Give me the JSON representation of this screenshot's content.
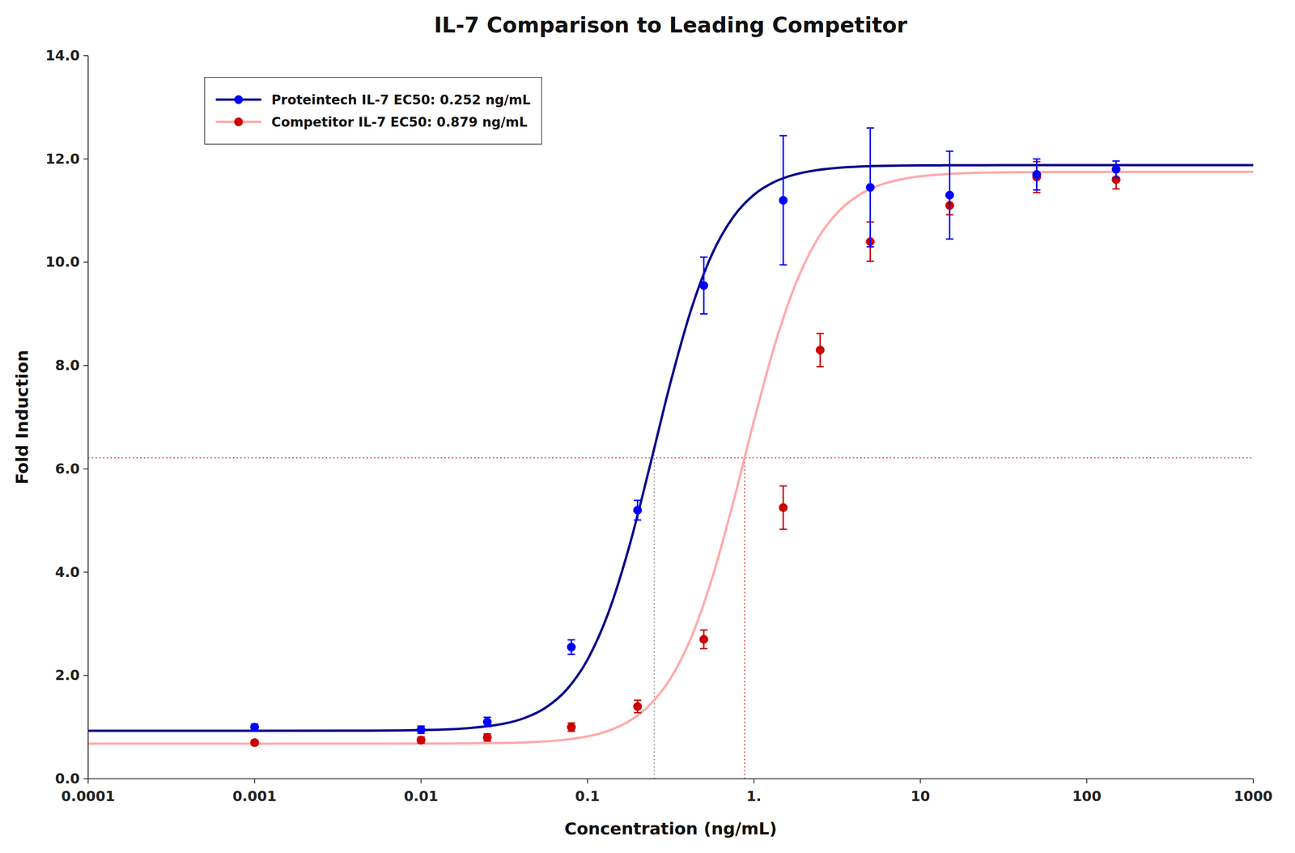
{
  "chart_data": {
    "type": "line",
    "title": "IL-7 Comparison to Leading Competitor",
    "x_label": "Concentration (ng/mL)",
    "y_label": "Fold Induction",
    "log": "x",
    "grid": false,
    "legend": "upper left",
    "xlim": [
      0.0001,
      1000
    ],
    "xticks": [
      0.0001,
      0.001,
      0.01,
      0.1,
      {
        "value": 1,
        "label": "1."
      },
      10,
      100,
      1000
    ],
    "ylim": [
      0.0,
      14.0
    ],
    "yticks": [
      {
        "value": 0,
        "label": "0.0"
      },
      {
        "value": 2,
        "label": "2.0"
      },
      {
        "value": 4,
        "label": "4.0"
      },
      {
        "value": 6,
        "label": "6.0"
      },
      {
        "value": 8,
        "label": "8.0"
      },
      {
        "value": 10,
        "label": "10.0"
      },
      {
        "value": 12,
        "label": "12.0"
      },
      {
        "value": 14,
        "label": "14.0"
      }
    ],
    "series": [
      {
        "name": "Proteintech IL-7 EC50: 0.252 ng/mL",
        "type": "line",
        "color": "#00008B",
        "x": [
          0.0001,
          0.001,
          0.0031623,
          0.01,
          0.017783,
          0.031623,
          0.04217,
          0.056234,
          0.074989,
          0.1,
          0.13335,
          0.17783,
          0.23714,
          0.31623,
          0.4217,
          0.56234,
          0.74989,
          1,
          1.3335,
          1.7783,
          2.3714,
          3.1623,
          4.217,
          5.6234,
          7.4989,
          10,
          17.783,
          31.623,
          100,
          316.23,
          1000
        ],
        "values": [
          0.93,
          0.9301,
          0.9311,
          0.9425,
          0.9717,
          1.0683,
          1.1805,
          1.3801,
          1.7264,
          2.3046,
          3.2084,
          4.4852,
          6.0557,
          7.6855,
          9.1065,
          10.1674,
          10.8728,
          11.3058,
          11.5587,
          11.702,
          11.782,
          11.8263,
          11.8506,
          11.8639,
          11.8712,
          11.8752,
          11.8786,
          11.8796,
          11.88,
          11.88,
          11.88
        ]
      },
      {
        "type": "scatter",
        "color": "#0000ff",
        "marker": "circle",
        "x": [
          0.001,
          0.01,
          0.025,
          0.08,
          0.2,
          0.5,
          1.5,
          5.0,
          15.0,
          50.0,
          150.0
        ],
        "values": [
          1.0,
          0.95,
          1.1,
          2.55,
          5.2,
          9.55,
          11.2,
          11.45,
          11.3,
          11.7,
          11.8
        ],
        "errors": [
          0.06,
          0.07,
          0.09,
          0.14,
          0.19,
          0.55,
          1.25,
          1.15,
          0.85,
          0.3,
          0.16
        ]
      },
      {
        "name": "Competitor IL-7 EC50: 0.879 ng/mL",
        "type": "line",
        "color": "#ffaaaa",
        "x": [
          0.0001,
          0.001,
          0.0031623,
          0.01,
          0.017783,
          0.031623,
          0.04217,
          0.056234,
          0.074989,
          0.1,
          0.13335,
          0.17783,
          0.23714,
          0.31623,
          0.4217,
          0.56234,
          0.74989,
          1,
          1.3335,
          1.7783,
          2.3714,
          3.1623,
          4.217,
          5.6234,
          7.4989,
          10,
          17.783,
          31.623,
          100,
          316.23,
          1000
        ],
        "values": [
          0.68,
          0.68,
          0.6801,
          0.6814,
          0.6845,
          0.6943,
          0.7054,
          0.7251,
          0.76,
          0.8214,
          0.929,
          1.1153,
          1.431,
          1.9485,
          2.7511,
          3.8952,
          5.343,
          6.9247,
          8.397,
          9.5765,
          10.4127,
          10.956,
          11.289,
          11.486,
          11.6,
          11.6651,
          11.723,
          11.7414,
          11.7491,
          11.7499,
          11.75
        ]
      },
      {
        "type": "scatter",
        "color": "#cc0000",
        "marker": "circle",
        "x": [
          0.001,
          0.01,
          0.025,
          0.08,
          0.2,
          0.5,
          1.5,
          2.5,
          5.0,
          15.0,
          50.0,
          150.0
        ],
        "values": [
          0.7,
          0.75,
          0.8,
          1.0,
          1.4,
          2.7,
          5.25,
          8.3,
          10.4,
          11.1,
          11.65,
          11.6
        ],
        "errors": [
          0.05,
          0.06,
          0.07,
          0.08,
          0.12,
          0.18,
          0.42,
          0.32,
          0.38,
          0.18,
          0.3,
          0.18
        ]
      }
    ],
    "hlines": [
      {
        "y": 6.215,
        "color": "#dd3333",
        "line_style": "dotted"
      }
    ],
    "vlines": [
      {
        "x": 0.252,
        "ymin": 0,
        "ymax": 6.405,
        "color": "#888888",
        "line_style": "dotted"
      },
      {
        "x": 0.879,
        "ymin": 0,
        "ymax": 6.215,
        "color": "#dd3333",
        "line_style": "dotted"
      }
    ]
  }
}
